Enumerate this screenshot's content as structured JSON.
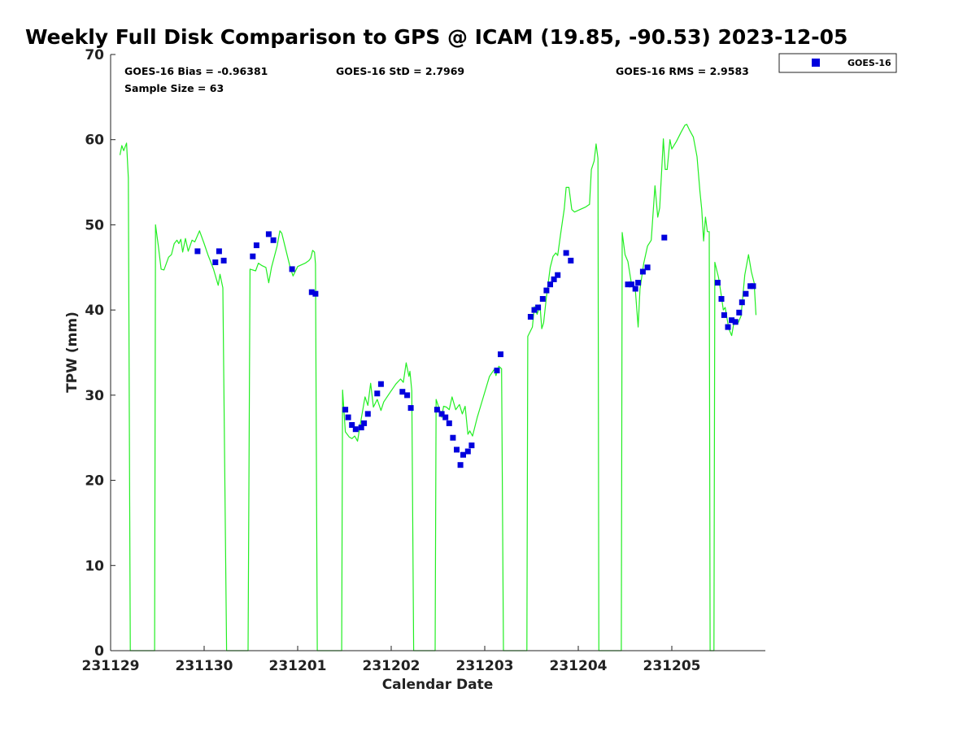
{
  "chart_data": {
    "type": "scatter",
    "title": "Weekly Full Disk Comparison to GPS @ ICAM (19.85, -90.53) 2023-12-05",
    "xlabel": "Calendar Date",
    "ylabel": "TPW (mm)",
    "xlim": [
      0,
      7
    ],
    "ylim": [
      0,
      70
    ],
    "x_ticks": [
      {
        "value": 0,
        "label": "231129"
      },
      {
        "value": 1,
        "label": "231130"
      },
      {
        "value": 2,
        "label": "231201"
      },
      {
        "value": 3,
        "label": "231202"
      },
      {
        "value": 4,
        "label": "231203"
      },
      {
        "value": 5,
        "label": "231204"
      },
      {
        "value": 6,
        "label": "231205"
      }
    ],
    "y_ticks": [
      0,
      10,
      20,
      30,
      40,
      50,
      60,
      70
    ],
    "grid": false,
    "legend_position": "outside-top-right",
    "stats": {
      "bias": "GOES-16 Bias = -0.96381",
      "sample": "Sample Size = 63",
      "std": "GOES-16 StD = 2.7969",
      "rms": "GOES-16 RMS = 2.9583"
    },
    "series": [
      {
        "name": "GOES-16",
        "kind": "scatter",
        "color": "#0000dd",
        "points": [
          [
            0.93,
            46.9
          ],
          [
            1.12,
            45.6
          ],
          [
            1.16,
            46.9
          ],
          [
            1.21,
            45.8
          ],
          [
            1.52,
            46.3
          ],
          [
            1.56,
            47.6
          ],
          [
            1.69,
            48.9
          ],
          [
            1.74,
            48.2
          ],
          [
            1.94,
            44.8
          ],
          [
            2.15,
            42.1
          ],
          [
            2.19,
            41.9
          ],
          [
            2.51,
            28.3
          ],
          [
            2.54,
            27.4
          ],
          [
            2.58,
            26.5
          ],
          [
            2.62,
            26.0
          ],
          [
            2.68,
            26.2
          ],
          [
            2.71,
            26.7
          ],
          [
            2.75,
            27.8
          ],
          [
            2.85,
            30.2
          ],
          [
            2.89,
            31.3
          ],
          [
            3.12,
            30.4
          ],
          [
            3.17,
            30.0
          ],
          [
            3.21,
            28.5
          ],
          [
            3.49,
            28.3
          ],
          [
            3.54,
            27.8
          ],
          [
            3.58,
            27.4
          ],
          [
            3.62,
            26.7
          ],
          [
            3.66,
            25.0
          ],
          [
            3.7,
            23.6
          ],
          [
            3.74,
            21.8
          ],
          [
            3.77,
            23.0
          ],
          [
            3.82,
            23.4
          ],
          [
            3.86,
            24.1
          ],
          [
            4.13,
            32.9
          ],
          [
            4.17,
            34.8
          ],
          [
            4.49,
            39.2
          ],
          [
            4.53,
            40.0
          ],
          [
            4.57,
            40.3
          ],
          [
            4.62,
            41.3
          ],
          [
            4.66,
            42.3
          ],
          [
            4.7,
            43.0
          ],
          [
            4.74,
            43.6
          ],
          [
            4.78,
            44.1
          ],
          [
            4.87,
            46.7
          ],
          [
            4.92,
            45.8
          ],
          [
            5.53,
            43.0
          ],
          [
            5.57,
            43.0
          ],
          [
            5.61,
            42.5
          ],
          [
            5.64,
            43.2
          ],
          [
            5.69,
            44.5
          ],
          [
            5.74,
            45.0
          ],
          [
            5.92,
            48.5
          ],
          [
            6.49,
            43.2
          ],
          [
            6.53,
            41.3
          ],
          [
            6.56,
            39.4
          ],
          [
            6.6,
            38.0
          ],
          [
            6.64,
            38.8
          ],
          [
            6.68,
            38.6
          ],
          [
            6.72,
            39.7
          ],
          [
            6.75,
            40.9
          ],
          [
            6.79,
            41.9
          ],
          [
            6.84,
            42.8
          ],
          [
            6.87,
            42.8
          ]
        ]
      },
      {
        "name": "",
        "kind": "line",
        "color": "#22ee22",
        "points": [
          [
            0.1,
            58.2
          ],
          [
            0.12,
            59.3
          ],
          [
            0.14,
            58.7
          ],
          [
            0.17,
            59.6
          ],
          [
            0.19,
            55.5
          ],
          [
            0.21,
            0
          ],
          [
            0.47,
            0
          ],
          [
            0.48,
            50.0
          ],
          [
            0.51,
            47.5
          ],
          [
            0.54,
            44.8
          ],
          [
            0.57,
            44.7
          ],
          [
            0.62,
            46.2
          ],
          [
            0.65,
            46.5
          ],
          [
            0.68,
            47.8
          ],
          [
            0.71,
            48.2
          ],
          [
            0.73,
            47.8
          ],
          [
            0.75,
            48.3
          ],
          [
            0.77,
            46.8
          ],
          [
            0.8,
            48.4
          ],
          [
            0.83,
            46.9
          ],
          [
            0.87,
            48.2
          ],
          [
            0.9,
            48.0
          ],
          [
            0.95,
            49.3
          ],
          [
            1.0,
            47.8
          ],
          [
            1.04,
            46.5
          ],
          [
            1.1,
            44.8
          ],
          [
            1.15,
            42.9
          ],
          [
            1.17,
            44.2
          ],
          [
            1.2,
            42.6
          ],
          [
            1.24,
            0
          ],
          [
            1.47,
            0
          ],
          [
            1.49,
            44.8
          ],
          [
            1.55,
            44.6
          ],
          [
            1.58,
            45.5
          ],
          [
            1.62,
            45.2
          ],
          [
            1.66,
            45.0
          ],
          [
            1.69,
            43.2
          ],
          [
            1.72,
            45.0
          ],
          [
            1.78,
            47.5
          ],
          [
            1.81,
            49.3
          ],
          [
            1.83,
            49.0
          ],
          [
            1.87,
            47.2
          ],
          [
            1.92,
            45.0
          ],
          [
            1.95,
            44.0
          ],
          [
            2.0,
            45.1
          ],
          [
            2.08,
            45.5
          ],
          [
            2.12,
            45.8
          ],
          [
            2.14,
            46.1
          ],
          [
            2.16,
            47.0
          ],
          [
            2.18,
            46.8
          ],
          [
            2.19,
            45.4
          ],
          [
            2.21,
            0
          ],
          [
            2.47,
            0
          ],
          [
            2.48,
            30.6
          ],
          [
            2.51,
            25.7
          ],
          [
            2.55,
            25.1
          ],
          [
            2.58,
            24.9
          ],
          [
            2.61,
            25.2
          ],
          [
            2.64,
            24.6
          ],
          [
            2.67,
            26.6
          ],
          [
            2.72,
            29.8
          ],
          [
            2.75,
            28.8
          ],
          [
            2.78,
            31.4
          ],
          [
            2.81,
            28.6
          ],
          [
            2.85,
            29.5
          ],
          [
            2.89,
            28.2
          ],
          [
            2.92,
            29.2
          ],
          [
            2.98,
            30.2
          ],
          [
            3.05,
            31.3
          ],
          [
            3.1,
            31.9
          ],
          [
            3.13,
            31.5
          ],
          [
            3.16,
            33.8
          ],
          [
            3.19,
            32.2
          ],
          [
            3.2,
            32.8
          ],
          [
            3.22,
            30.5
          ],
          [
            3.24,
            0
          ],
          [
            3.47,
            0
          ],
          [
            3.48,
            29.5
          ],
          [
            3.51,
            28.5
          ],
          [
            3.54,
            27.4
          ],
          [
            3.56,
            28.7
          ],
          [
            3.59,
            28.6
          ],
          [
            3.62,
            28.3
          ],
          [
            3.65,
            29.8
          ],
          [
            3.69,
            28.3
          ],
          [
            3.73,
            28.9
          ],
          [
            3.76,
            27.8
          ],
          [
            3.79,
            28.7
          ],
          [
            3.82,
            25.4
          ],
          [
            3.84,
            25.8
          ],
          [
            3.87,
            25.2
          ],
          [
            3.92,
            27.4
          ],
          [
            3.98,
            29.6
          ],
          [
            4.05,
            32.2
          ],
          [
            4.1,
            33.0
          ],
          [
            4.12,
            32.3
          ],
          [
            4.15,
            33.4
          ],
          [
            4.18,
            33.1
          ],
          [
            4.2,
            0
          ],
          [
            4.45,
            0
          ],
          [
            4.46,
            36.9
          ],
          [
            4.51,
            38.0
          ],
          [
            4.53,
            40.4
          ],
          [
            4.56,
            39.5
          ],
          [
            4.59,
            40.6
          ],
          [
            4.61,
            37.8
          ],
          [
            4.63,
            38.5
          ],
          [
            4.66,
            41.6
          ],
          [
            4.7,
            45.0
          ],
          [
            4.73,
            46.3
          ],
          [
            4.76,
            46.7
          ],
          [
            4.78,
            46.4
          ],
          [
            4.81,
            48.8
          ],
          [
            4.85,
            51.9
          ],
          [
            4.87,
            54.4
          ],
          [
            4.9,
            54.4
          ],
          [
            4.93,
            51.8
          ],
          [
            4.96,
            51.5
          ],
          [
            5.0,
            51.7
          ],
          [
            5.08,
            52.1
          ],
          [
            5.12,
            52.4
          ],
          [
            5.14,
            56.5
          ],
          [
            5.17,
            57.5
          ],
          [
            5.19,
            59.5
          ],
          [
            5.21,
            57.8
          ],
          [
            5.22,
            0
          ],
          [
            5.46,
            0
          ],
          [
            5.47,
            49.1
          ],
          [
            5.5,
            46.5
          ],
          [
            5.53,
            45.7
          ],
          [
            5.57,
            43.0
          ],
          [
            5.61,
            42.3
          ],
          [
            5.64,
            38.0
          ],
          [
            5.66,
            42.5
          ],
          [
            5.7,
            45.5
          ],
          [
            5.74,
            47.5
          ],
          [
            5.78,
            48.2
          ],
          [
            5.82,
            54.6
          ],
          [
            5.85,
            50.9
          ],
          [
            5.87,
            52.0
          ],
          [
            5.91,
            60.1
          ],
          [
            5.93,
            56.5
          ],
          [
            5.95,
            56.5
          ],
          [
            5.98,
            60.0
          ],
          [
            6.0,
            58.9
          ],
          [
            6.05,
            59.8
          ],
          [
            6.1,
            60.9
          ],
          [
            6.14,
            61.7
          ],
          [
            6.16,
            61.8
          ],
          [
            6.19,
            61.1
          ],
          [
            6.23,
            60.3
          ],
          [
            6.27,
            58.0
          ],
          [
            6.3,
            54.0
          ],
          [
            6.32,
            51.8
          ],
          [
            6.34,
            48.1
          ],
          [
            6.36,
            50.9
          ],
          [
            6.38,
            49.2
          ],
          [
            6.4,
            49.2
          ],
          [
            6.41,
            0
          ],
          [
            6.45,
            0
          ],
          [
            6.46,
            45.6
          ],
          [
            6.5,
            43.8
          ],
          [
            6.53,
            41.6
          ],
          [
            6.55,
            40.0
          ],
          [
            6.57,
            40.3
          ],
          [
            6.61,
            37.8
          ],
          [
            6.64,
            37.0
          ],
          [
            6.67,
            38.9
          ],
          [
            6.71,
            38.5
          ],
          [
            6.74,
            39.3
          ],
          [
            6.78,
            44.1
          ],
          [
            6.82,
            46.5
          ],
          [
            6.85,
            44.5
          ],
          [
            6.88,
            43.2
          ],
          [
            6.9,
            39.4
          ]
        ]
      }
    ]
  }
}
